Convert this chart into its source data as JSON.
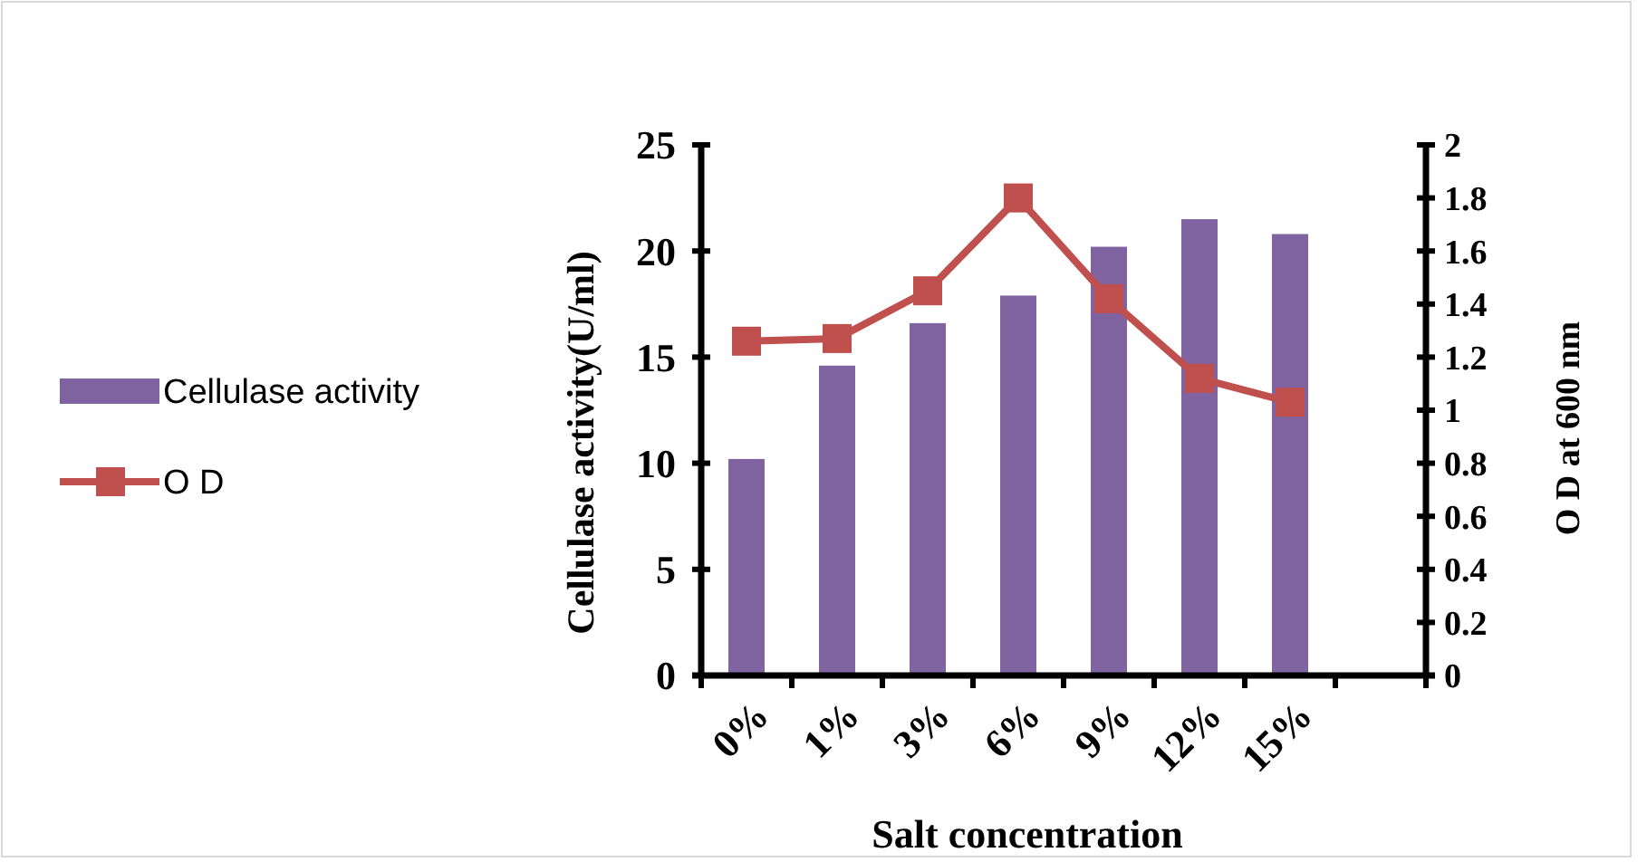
{
  "chart_data": {
    "type": "bar",
    "categories": [
      "0%",
      "1%",
      "3%",
      "6%",
      "9%",
      "12%",
      "15%",
      null
    ],
    "xlabel": "Salt concentration",
    "ylabel": "Cellulase activity(U/ml)",
    "y2label": "O D at 600 nm",
    "ylim": [
      0,
      25
    ],
    "yticks": [
      0,
      5,
      10,
      15,
      20,
      25
    ],
    "y2lim": [
      0,
      2
    ],
    "y2ticks": [
      0,
      0.2,
      0.4,
      0.6,
      0.8,
      1,
      1.2,
      1.4,
      1.6,
      1.8,
      2
    ],
    "legend": "left",
    "grid": false,
    "series": [
      {
        "name": "Cellulase activity",
        "color": "#8064a2",
        "values": [
          10.2,
          14.6,
          16.6,
          17.9,
          20.2,
          21.5,
          20.8,
          null
        ]
      },
      {
        "name": "O D",
        "type": "line",
        "axis": "y2",
        "color": "#c0504d",
        "marker": "square",
        "values": [
          1.26,
          1.27,
          1.45,
          1.8,
          1.42,
          1.12,
          1.03,
          null
        ]
      }
    ]
  }
}
